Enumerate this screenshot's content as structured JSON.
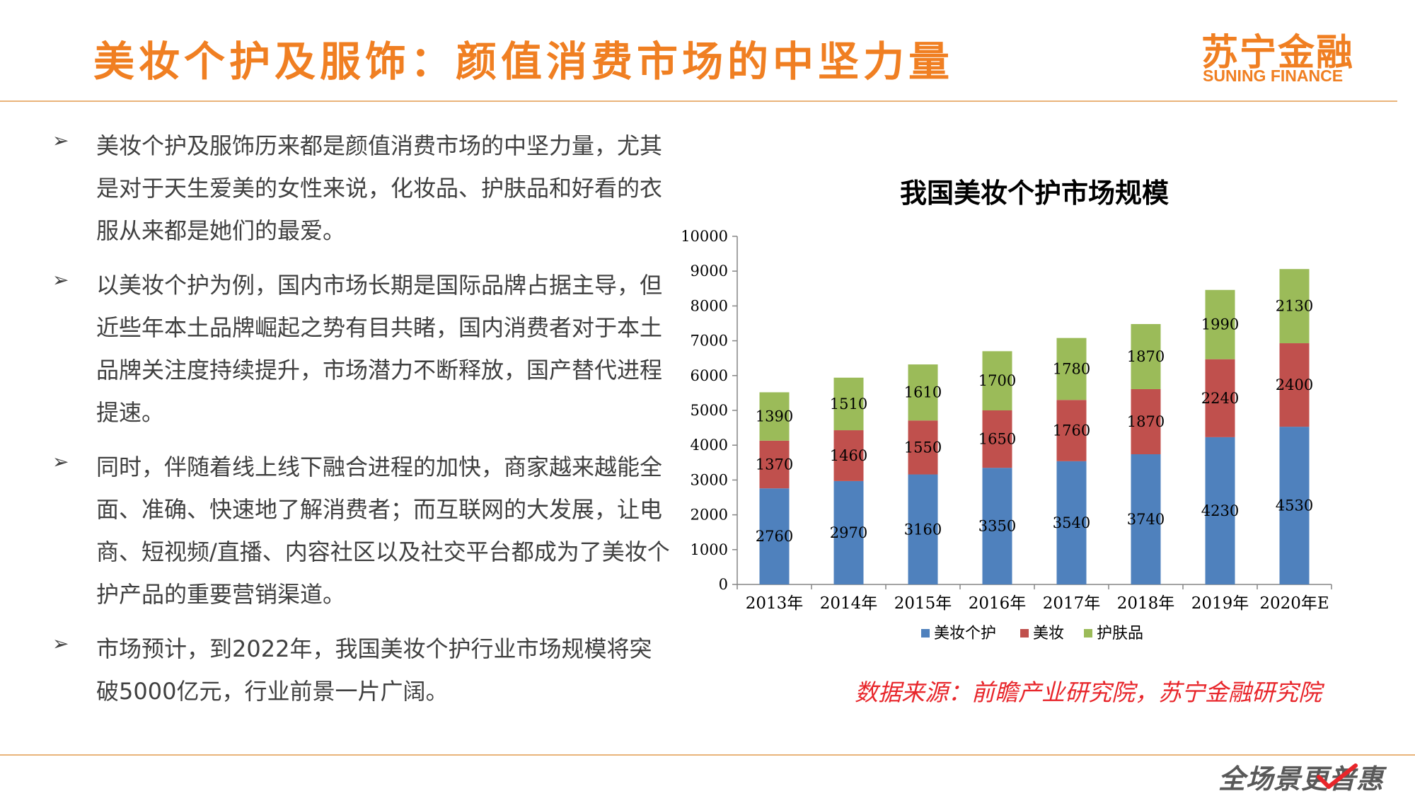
{
  "header": {
    "title": "美妆个护及服饰：颜值消费市场的中坚力量",
    "logo_cn": "苏宁金融",
    "logo_en": "SUNING FINANCE"
  },
  "bullets": [
    "美妆个护及服饰历来都是颜值消费市场的中坚力量，尤其是对于天生爱美的女性来说，化妆品、护肤品和好看的衣服从来都是她们的最爱。",
    "以美妆个护为例，国内市场长期是国际品牌占据主导，但近些年本土品牌崛起之势有目共睹，国内消费者对于本土品牌关注度持续提升，市场潜力不断释放，国产替代进程提速。",
    "同时，伴随着线上线下融合进程的加快，商家越来越能全面、准确、快速地了解消费者；而互联网的大发展，让电商、短视频/直播、内容社区以及社交平台都成为了美妆个护产品的重要营销渠道。",
    "市场预计，到2022年，我国美妆个护行业市场规模将突破5000亿元，行业前景一片广阔。"
  ],
  "chart_data": {
    "type": "bar",
    "stacked": true,
    "title": "我国美妆个护市场规模",
    "categories": [
      "2013年",
      "2014年",
      "2015年",
      "2016年",
      "2017年",
      "2018年",
      "2019年",
      "2020年E"
    ],
    "series": [
      {
        "name": "美妆个护",
        "color": "#4F81BD",
        "values": [
          2760,
          2970,
          3160,
          3350,
          3540,
          3740,
          4230,
          4530
        ]
      },
      {
        "name": "美妆",
        "color": "#C0504D",
        "values": [
          1370,
          1460,
          1550,
          1650,
          1760,
          1870,
          2240,
          2400
        ]
      },
      {
        "name": "护肤品",
        "color": "#9BBB59",
        "values": [
          1390,
          1510,
          1610,
          1700,
          1780,
          1870,
          1990,
          2130
        ]
      }
    ],
    "ylim": [
      0,
      10000
    ],
    "yticks": [
      0,
      1000,
      2000,
      3000,
      4000,
      5000,
      6000,
      7000,
      8000,
      9000,
      10000
    ],
    "legend_position": "bottom",
    "grid": false
  },
  "source_note": "数据来源：前瞻产业研究院，苏宁金融研究院",
  "footer": {
    "slogan": "全场景更普惠"
  }
}
